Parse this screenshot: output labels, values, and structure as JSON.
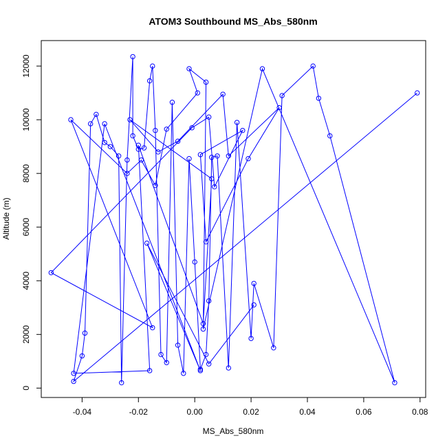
{
  "chart_data": {
    "type": "line",
    "title": "ATOM3 Southbound MS_Abs_580nm",
    "xlabel": "MS_Abs_580nm",
    "ylabel": "Altitude (m)",
    "xlim": [
      -0.0545,
      0.082
    ],
    "ylim": [
      -350,
      12950
    ],
    "x_ticks": [
      -0.04,
      -0.02,
      0.0,
      0.02,
      0.04,
      0.06,
      0.08
    ],
    "x_tick_labels": [
      "-0.04",
      "-0.02",
      "0.00",
      "0.02",
      "0.04",
      "0.06",
      "0.08"
    ],
    "y_ticks": [
      0,
      2000,
      4000,
      6000,
      8000,
      10000,
      12000
    ],
    "y_tick_labels": [
      "0",
      "2000",
      "4000",
      "6000",
      "8000",
      "10000",
      "12000"
    ],
    "grid": false,
    "style": "line-with-open-circle-markers",
    "series": [
      {
        "color": "#0000ff",
        "x": [
          0.079,
          -0.043,
          -0.04,
          -0.039,
          -0.037,
          -0.035,
          -0.032,
          -0.03,
          -0.027,
          -0.026,
          -0.024,
          -0.022,
          -0.022,
          -0.02,
          -0.018,
          -0.016,
          -0.015,
          -0.014,
          -0.012,
          -0.01,
          -0.008,
          -0.006,
          -0.004,
          -0.002,
          0.0,
          0.002,
          0.004,
          0.005,
          0.006,
          0.008,
          0.012,
          0.015,
          0.02,
          0.021,
          0.028,
          0.031,
          0.042,
          0.044,
          0.048,
          0.071,
          0.024,
          0.003,
          0.004,
          -0.002,
          0.001,
          -0.01,
          -0.014,
          -0.019,
          -0.024,
          -0.044,
          -0.015,
          -0.051,
          -0.001,
          0.005,
          0.007,
          0.017,
          0.002,
          0.004,
          0.019,
          0.03,
          0.012,
          0.01,
          -0.006,
          -0.013,
          -0.023,
          0.006,
          0.003,
          -0.02,
          -0.016,
          -0.043,
          -0.032,
          0.002,
          -0.017,
          0.005,
          0.021
        ],
        "y": [
          11000,
          250,
          1200,
          2050,
          9850,
          10200,
          9150,
          9000,
          8650,
          200,
          8500,
          12350,
          9400,
          8900,
          8950,
          11450,
          12000,
          9600,
          1250,
          950,
          10650,
          1600,
          550,
          8550,
          4700,
          700,
          1250,
          3250,
          8600,
          8650,
          750,
          9900,
          1850,
          3900,
          1500,
          10900,
          12000,
          10800,
          9400,
          200,
          11900,
          2200,
          11400,
          11900,
          11000,
          9650,
          7550,
          8500,
          8000,
          10000,
          2250,
          4300,
          9700,
          10100,
          7500,
          9600,
          8700,
          5450,
          8550,
          10450,
          8650,
          10950,
          9200,
          8800,
          10000,
          7800,
          2400,
          9050,
          650,
          550,
          9850,
          650,
          5400,
          900,
          3100
        ]
      }
    ]
  }
}
